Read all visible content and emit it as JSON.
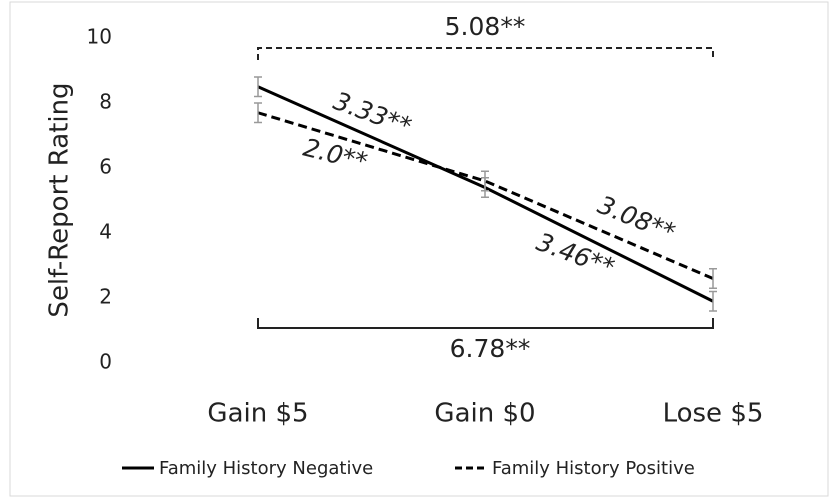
{
  "chart_data": {
    "type": "line",
    "ylabel": "Self-Report Rating",
    "categories": [
      "Gain $5",
      "Gain $0",
      "Lose $5"
    ],
    "series": [
      {
        "name": "Family History Negative",
        "color": "#000000",
        "dash": "solid",
        "values": [
          8.5,
          5.4,
          1.9
        ],
        "errors": [
          0.3,
          0.3,
          0.3
        ]
      },
      {
        "name": "Family History Positive",
        "color": "#000000",
        "dash": "dashed",
        "values": [
          7.7,
          5.6,
          2.6
        ],
        "errors": [
          0.3,
          0.3,
          0.3
        ]
      }
    ],
    "ylim": [
      0,
      10
    ],
    "yticks": [
      0,
      2,
      4,
      6,
      8,
      10
    ],
    "legend": "bottom",
    "annotations": [
      {
        "text": "5.08**"
      },
      {
        "text": "6.78**"
      },
      {
        "text": "3.33**"
      },
      {
        "text": "2.0**"
      },
      {
        "text": "3.08**"
      },
      {
        "text": "3.46**"
      }
    ]
  }
}
